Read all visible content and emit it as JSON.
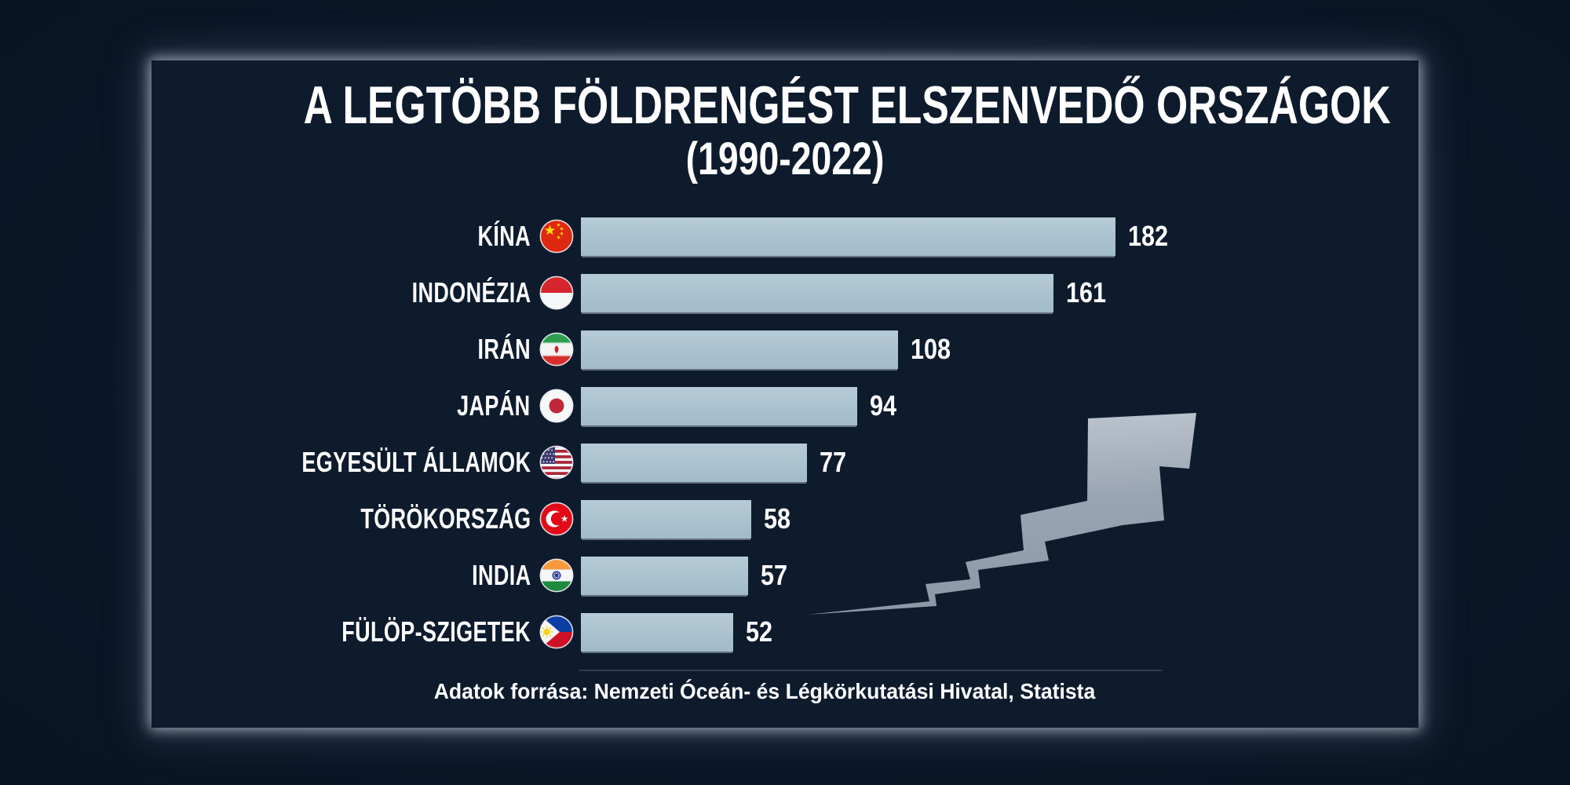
{
  "header": {
    "title": "A LEGTÖBB FÖLDRENGÉST ELSZENVEDŐ ORSZÁGOK",
    "subtitle": "(1990-2022)"
  },
  "footer": {
    "source": "Adatok forrása: Nemzeti Óceán- és Légkörkutatási Hivatal, Statista"
  },
  "colors": {
    "background": "#091525",
    "panel": "#0d1b2d",
    "bar": "#aac2cf",
    "text": "#ffffff",
    "edge_glow": "#c2ccd8",
    "crack_light": "#c2c9d3",
    "crack_dark": "#8d98a7"
  },
  "chart_data": {
    "type": "bar",
    "orientation": "horizontal",
    "title": "A LEGTÖBB FÖLDRENGÉST ELSZENVEDŐ ORSZÁGOK (1990-2022)",
    "categories": [
      "KÍNA",
      "INDONÉZIA",
      "IRÁN",
      "JAPÁN",
      "EGYESÜLT ÁLLAMOK",
      "TÖRÖKORSZÁG",
      "INDIA",
      "FÜLÖP-SZIGETEK"
    ],
    "values": [
      182,
      161,
      108,
      94,
      77,
      58,
      57,
      52
    ],
    "flag_icons": [
      "china-flag-icon",
      "indonesia-flag-icon",
      "iran-flag-icon",
      "japan-flag-icon",
      "usa-flag-icon",
      "turkey-flag-icon",
      "india-flag-icon",
      "philippines-flag-icon"
    ],
    "value_labels_shown": true,
    "xlim": [
      0,
      195
    ],
    "grid": false,
    "legend": false
  }
}
